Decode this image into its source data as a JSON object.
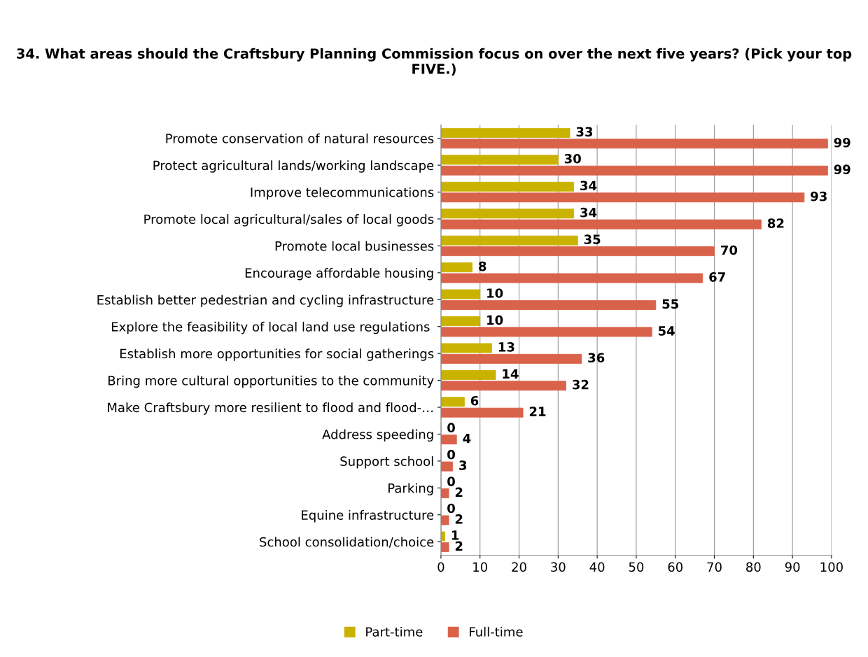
{
  "chart_data": {
    "type": "bar",
    "orientation": "horizontal",
    "title": "34. What areas should the Craftsbury Planning Commission focus on over the next five years? (Pick your top FIVE.)",
    "categories": [
      "Promote conservation of natural resources",
      "Protect agricultural lands/working landscape",
      "Improve telecommunications",
      "Promote local agricultural/sales of local goods",
      "Promote local businesses",
      "Encourage affordable housing",
      "Establish better pedestrian and cycling infrastructure",
      "Explore the feasibility of local land use regulations ",
      "Establish more opportunities for social gatherings",
      "Bring more cultural opportunities to the community",
      "Make Craftsbury more resilient to flood and flood-…",
      "Address speeding",
      "Support school",
      "Parking",
      "Equine infrastructure",
      "School consolidation/choice"
    ],
    "series": [
      {
        "name": "Part-time",
        "color": "#c9b200",
        "values": [
          33,
          30,
          34,
          34,
          35,
          8,
          10,
          10,
          13,
          14,
          6,
          0,
          0,
          0,
          0,
          1
        ]
      },
      {
        "name": "Full-time",
        "color": "#d9624a",
        "values": [
          99,
          99,
          93,
          82,
          70,
          67,
          55,
          54,
          36,
          32,
          21,
          4,
          3,
          2,
          2,
          2
        ]
      }
    ],
    "xlim": [
      0,
      100
    ],
    "xticks": [
      0,
      10,
      20,
      30,
      40,
      50,
      60,
      70,
      80,
      90,
      100
    ],
    "grid": "x",
    "legend": "bottom",
    "data_labels": true
  }
}
